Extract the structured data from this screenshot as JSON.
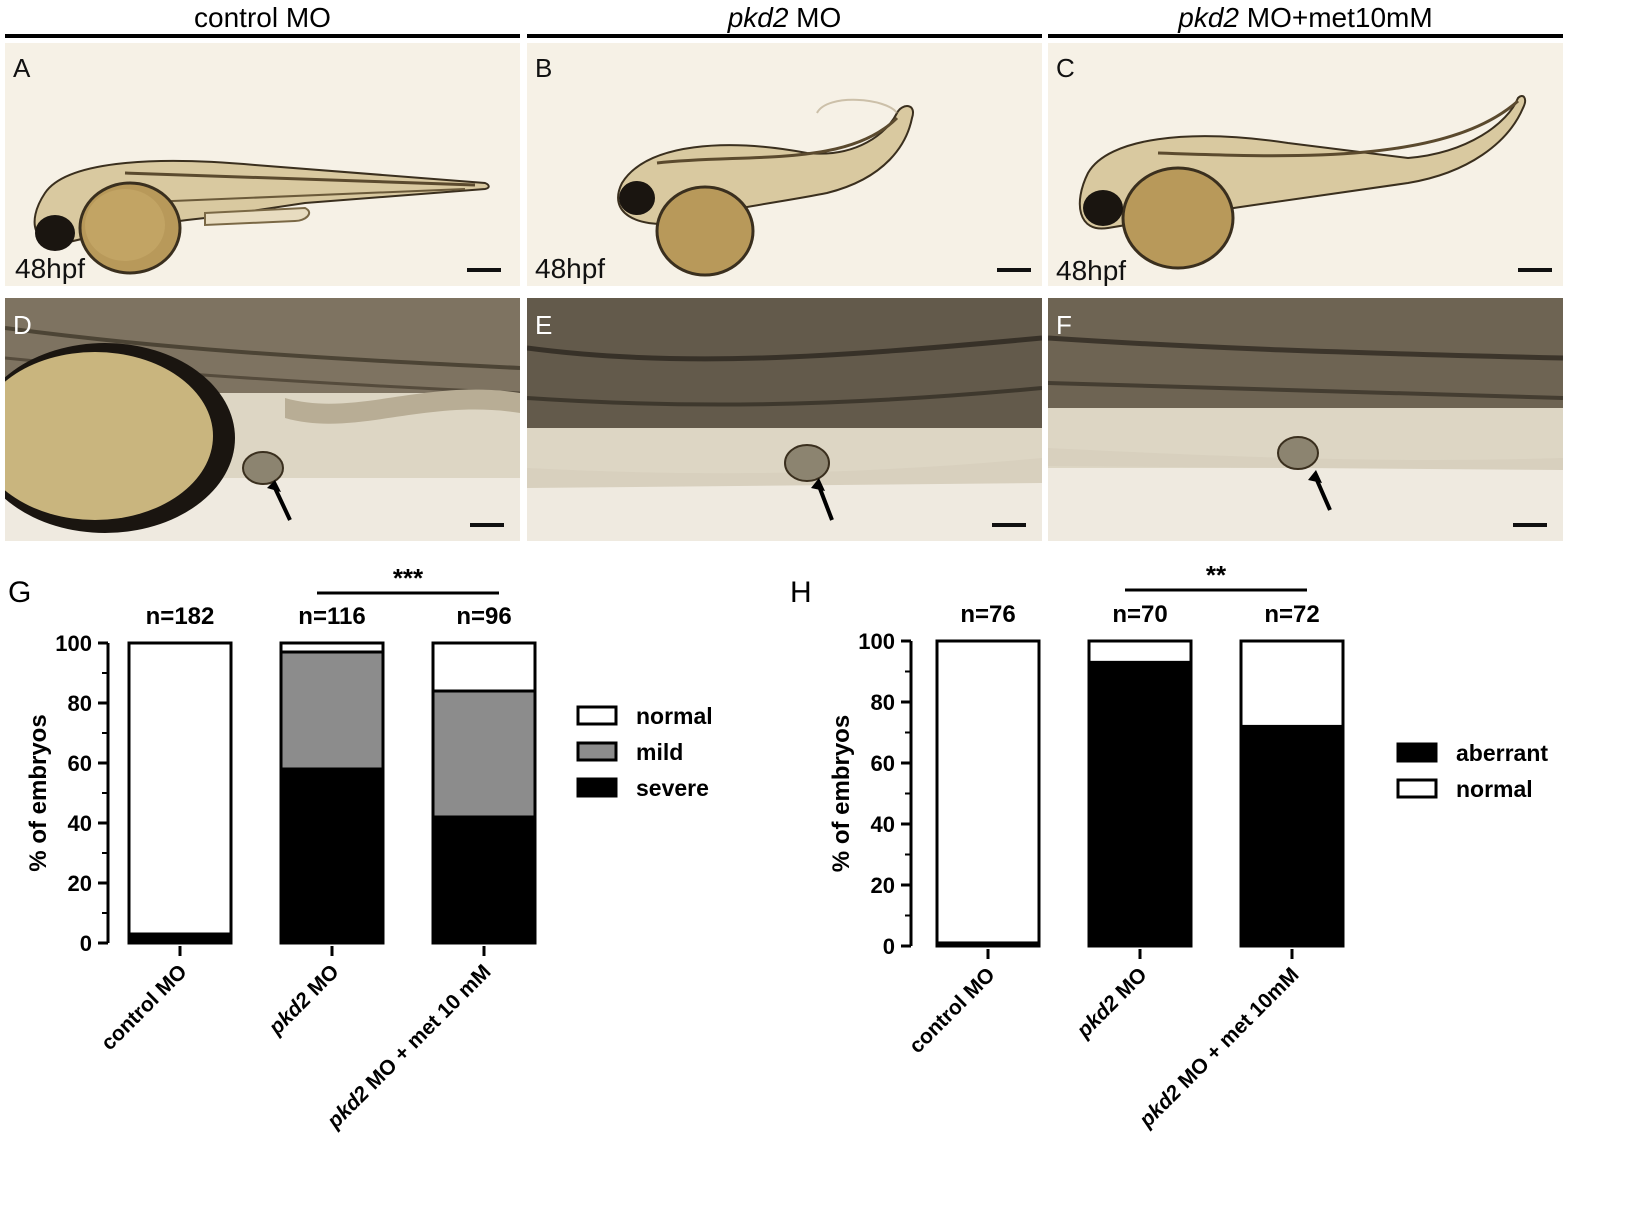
{
  "columns": [
    {
      "prefix": "",
      "italic": "",
      "suffix": "control MO"
    },
    {
      "prefix": "",
      "italic": "pkd2",
      "suffix": " MO"
    },
    {
      "prefix": "",
      "italic": "pkd2",
      "suffix": " MO+met10mM"
    }
  ],
  "panels": {
    "A": "A",
    "B": "B",
    "C": "C",
    "D": "D",
    "E": "E",
    "F": "F",
    "G": "G",
    "H": "H"
  },
  "stage_label": "48hpf",
  "colors": {
    "photo_bg": "#f6f1e6",
    "closeup_bg": "#ddd6c4",
    "embryo_yolk": "#b8995a",
    "embryo_dark": "#2b2418",
    "normal": "#ffffff",
    "mild": "#8c8c8c",
    "severe": "#000000"
  },
  "chart_data": [
    {
      "type": "bar",
      "stacked": true,
      "panel": "G",
      "ylabel": "% of embryos",
      "ylim": [
        0,
        100
      ],
      "yticks": [
        0,
        20,
        40,
        60,
        80,
        100
      ],
      "categories": [
        "control MO",
        "pkd2 MO",
        "pkd2 MO + met 10 mM"
      ],
      "category_italic_prefix": [
        "",
        "pkd2",
        "pkd2"
      ],
      "category_rest": [
        "control MO",
        " MO",
        " MO + met 10 mM"
      ],
      "n_labels": [
        "n=182",
        "n=116",
        "n=96"
      ],
      "series": [
        {
          "name": "severe",
          "color": "#000000",
          "values": [
            3,
            58,
            42
          ]
        },
        {
          "name": "mild",
          "color": "#8c8c8c",
          "values": [
            0,
            39,
            42
          ]
        },
        {
          "name": "normal",
          "color": "#ffffff",
          "values": [
            97,
            3,
            16
          ]
        }
      ],
      "legend_order": [
        "normal",
        "mild",
        "severe"
      ],
      "legend_position": "right",
      "significance": {
        "from": 1,
        "to": 2,
        "label": "***"
      }
    },
    {
      "type": "bar",
      "stacked": true,
      "panel": "H",
      "ylabel": "% of embryos",
      "ylim": [
        0,
        100
      ],
      "yticks": [
        0,
        20,
        40,
        60,
        80,
        100
      ],
      "categories": [
        "control MO",
        "pkd2 MO",
        "pkd2 MO + met 10mM"
      ],
      "category_italic_prefix": [
        "",
        "pkd2",
        "pkd2"
      ],
      "category_rest": [
        "control MO",
        " MO",
        " MO + met 10mM"
      ],
      "n_labels": [
        "n=76",
        "n=70",
        "n=72"
      ],
      "series": [
        {
          "name": "aberrant",
          "color": "#000000",
          "values": [
            1,
            93,
            72
          ]
        },
        {
          "name": "normal",
          "color": "#ffffff",
          "values": [
            99,
            7,
            28
          ]
        }
      ],
      "legend_order": [
        "aberrant",
        "normal"
      ],
      "legend_position": "right",
      "significance": {
        "from": 1,
        "to": 2,
        "label": "**"
      }
    }
  ]
}
